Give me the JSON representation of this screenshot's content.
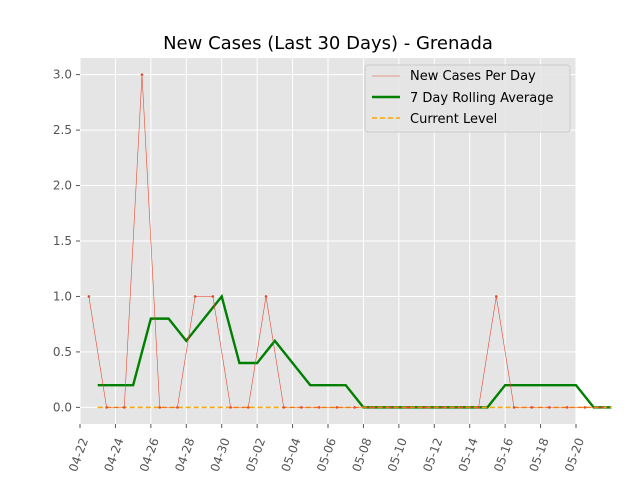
{
  "chart_data": {
    "type": "line",
    "title": "New Cases (Last 30 Days) - Grenada",
    "xlabel": "",
    "ylabel": "",
    "x_start": "04-23",
    "x": [
      "04-23",
      "04-24",
      "04-25",
      "04-26",
      "04-27",
      "04-28",
      "04-29",
      "04-30",
      "05-01",
      "05-02",
      "05-03",
      "05-04",
      "05-05",
      "05-06",
      "05-07",
      "05-08",
      "05-09",
      "05-10",
      "05-11",
      "05-12",
      "05-13",
      "05-14",
      "05-15",
      "05-16",
      "05-17",
      "05-18",
      "05-19",
      "05-20",
      "05-21",
      "05-22"
    ],
    "xlim": [
      "04-22",
      "05-20"
    ],
    "x_ticks": [
      "04-22",
      "04-24",
      "04-26",
      "04-28",
      "04-30",
      "05-02",
      "05-04",
      "05-06",
      "05-08",
      "05-10",
      "05-12",
      "05-14",
      "05-16",
      "05-18",
      "05-20"
    ],
    "ylim": [
      -0.15,
      3.15
    ],
    "y_ticks": [
      "0.0",
      "0.5",
      "1.0",
      "1.5",
      "2.0",
      "2.5",
      "3.0"
    ],
    "grid": true,
    "legend_position": "top-right",
    "series": [
      {
        "name": "New Cases Per Day",
        "color": "#e24a33",
        "style": "thin-line-with-markers",
        "x": [
          "04-22T12",
          "04-23T12",
          "04-24T12",
          "04-25T12",
          "04-26T12",
          "04-27T12",
          "04-28T12",
          "04-29T12",
          "04-30T12",
          "05-01T12",
          "05-02T12",
          "05-03T12",
          "05-04T12",
          "05-05T12",
          "05-06T12",
          "05-07T12",
          "05-08T12",
          "05-09T12",
          "05-10T12",
          "05-11T12",
          "05-12T12",
          "05-13T12",
          "05-14T12",
          "05-15T12",
          "05-16T12",
          "05-17T12",
          "05-18T12",
          "05-19T12",
          "05-20T12",
          "05-21T12"
        ],
        "values": [
          1,
          0,
          0,
          3,
          0,
          0,
          1,
          1,
          0,
          0,
          1,
          0,
          0,
          0,
          0,
          0,
          0,
          0,
          0,
          0,
          0,
          0,
          0,
          1,
          0,
          0,
          0,
          0,
          0,
          0
        ]
      },
      {
        "name": "7 Day Rolling Average",
        "color": "#008000",
        "style": "thick-line",
        "values": [
          0.2,
          0.2,
          0.2,
          0.8,
          0.8,
          0.6,
          0.8,
          1.0,
          0.4,
          0.4,
          0.6,
          0.4,
          0.2,
          0.2,
          0.2,
          0.0,
          0.0,
          0.0,
          0.0,
          0.0,
          0.0,
          0.0,
          0.0,
          0.2,
          0.2,
          0.2,
          0.2,
          0.2,
          0.0,
          0.0
        ]
      },
      {
        "name": "Current Level",
        "color": "#ffa500",
        "style": "dashed-line",
        "values": [
          0,
          0,
          0,
          0,
          0,
          0,
          0,
          0,
          0,
          0,
          0,
          0,
          0,
          0,
          0,
          0,
          0,
          0,
          0,
          0,
          0,
          0,
          0,
          0,
          0,
          0,
          0,
          0,
          0,
          0
        ]
      }
    ]
  }
}
